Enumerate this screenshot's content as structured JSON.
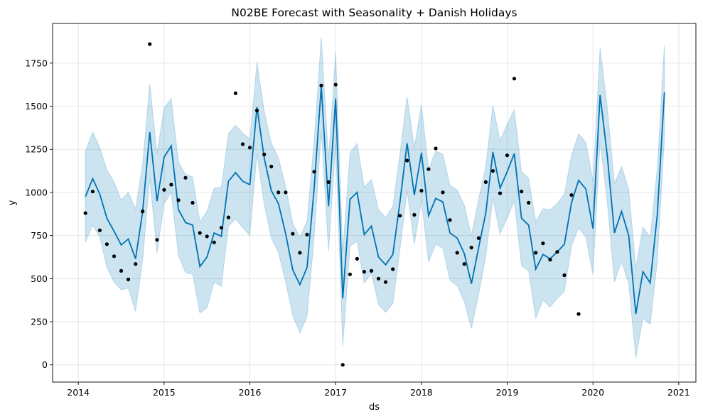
{
  "chart_data": {
    "type": "line",
    "title": "N02BE Forecast with Seasonality + Danish Holidays",
    "xlabel": "ds",
    "ylabel": "y",
    "xlim": [
      2013.7,
      2021.2
    ],
    "ylim": [
      -100,
      1980
    ],
    "grid": true,
    "x_ticks": [
      2014,
      2015,
      2016,
      2017,
      2018,
      2019,
      2020,
      2021
    ],
    "y_ticks": [
      0,
      250,
      500,
      750,
      1000,
      1250,
      1500,
      1750
    ],
    "colors": {
      "forecast": "#0072b2",
      "band": "#0072b2",
      "points": "#000000",
      "grid": "#e6e6e6"
    },
    "observed": {
      "x": [
        2014.083,
        2014.167,
        2014.25,
        2014.333,
        2014.417,
        2014.5,
        2014.583,
        2014.667,
        2014.75,
        2014.833,
        2014.917,
        2015.0,
        2015.083,
        2015.167,
        2015.25,
        2015.333,
        2015.417,
        2015.5,
        2015.583,
        2015.667,
        2015.75,
        2015.833,
        2015.917,
        2016.0,
        2016.083,
        2016.167,
        2016.25,
        2016.333,
        2016.417,
        2016.5,
        2016.583,
        2016.667,
        2016.75,
        2016.833,
        2016.917,
        2017.0,
        2017.083,
        2017.167,
        2017.25,
        2017.333,
        2017.417,
        2017.5,
        2017.583,
        2017.667,
        2017.75,
        2017.833,
        2017.917,
        2018.0,
        2018.083,
        2018.167,
        2018.25,
        2018.333,
        2018.417,
        2018.5,
        2018.583,
        2018.667,
        2018.75,
        2018.833,
        2018.917,
        2019.0,
        2019.083,
        2019.167,
        2019.25,
        2019.333,
        2019.417,
        2019.5,
        2019.583,
        2019.667,
        2019.75,
        2019.833
      ],
      "y": [
        880,
        1005,
        780,
        700,
        630,
        545,
        495,
        585,
        890,
        1860,
        725,
        1015,
        1045,
        955,
        1085,
        940,
        765,
        745,
        710,
        795,
        855,
        1575,
        1280,
        1260,
        1475,
        1220,
        1150,
        1000,
        1000,
        760,
        650,
        755,
        1120,
        1620,
        1060,
        1625,
        0,
        525,
        615,
        540,
        545,
        500,
        480,
        555,
        865,
        1185,
        870,
        1010,
        1135,
        1255,
        1000,
        840,
        650,
        585,
        680,
        735,
        1060,
        1125,
        995,
        1215,
        1660,
        1005,
        940,
        650,
        705,
        610,
        655,
        520,
        985,
        295
      ]
    },
    "forecast": {
      "x": [
        2014.083,
        2014.167,
        2014.25,
        2014.333,
        2014.417,
        2014.5,
        2014.583,
        2014.667,
        2014.75,
        2014.833,
        2014.917,
        2015.0,
        2015.083,
        2015.167,
        2015.25,
        2015.333,
        2015.417,
        2015.5,
        2015.583,
        2015.667,
        2015.75,
        2015.833,
        2015.917,
        2016.0,
        2016.083,
        2016.167,
        2016.25,
        2016.333,
        2016.417,
        2016.5,
        2016.583,
        2016.667,
        2016.75,
        2016.833,
        2016.917,
        2017.0,
        2017.083,
        2017.167,
        2017.25,
        2017.333,
        2017.417,
        2017.5,
        2017.583,
        2017.667,
        2017.75,
        2017.833,
        2017.917,
        2018.0,
        2018.083,
        2018.167,
        2018.25,
        2018.333,
        2018.417,
        2018.5,
        2018.583,
        2018.667,
        2018.75,
        2018.833,
        2018.917,
        2019.0,
        2019.083,
        2019.167,
        2019.25,
        2019.333,
        2019.417,
        2019.5,
        2019.583,
        2019.667,
        2019.75,
        2019.833,
        2019.917,
        2020.0,
        2020.083,
        2020.167,
        2020.25,
        2020.333,
        2020.417,
        2020.5,
        2020.583,
        2020.667,
        2020.75,
        2020.833
      ],
      "yhat": [
        975,
        1080,
        990,
        850,
        775,
        695,
        730,
        615,
        890,
        1350,
        950,
        1205,
        1270,
        900,
        825,
        810,
        570,
        625,
        765,
        745,
        1065,
        1115,
        1065,
        1045,
        1495,
        1200,
        1010,
        935,
        760,
        550,
        465,
        565,
        1025,
        1615,
        920,
        1545,
        385,
        960,
        1000,
        755,
        805,
        625,
        580,
        640,
        945,
        1285,
        985,
        1230,
        865,
        965,
        945,
        765,
        735,
        645,
        470,
        680,
        880,
        1235,
        1025,
        1120,
        1225,
        850,
        810,
        555,
        640,
        615,
        655,
        700,
        940,
        1070,
        1020,
        790,
        1565,
        1210,
        765,
        890,
        750,
        295,
        540,
        475,
        870,
        1580
      ],
      "lower": [
        710,
        810,
        740,
        565,
        480,
        435,
        445,
        310,
        610,
        1080,
        650,
        935,
        1000,
        635,
        535,
        525,
        300,
        330,
        480,
        455,
        805,
        845,
        795,
        750,
        1225,
        930,
        735,
        650,
        480,
        285,
        185,
        280,
        745,
        1355,
        660,
        1280,
        110,
        690,
        715,
        475,
        530,
        350,
        305,
        355,
        670,
        1010,
        700,
        955,
        595,
        700,
        675,
        490,
        460,
        365,
        210,
        410,
        630,
        965,
        760,
        850,
        950,
        575,
        545,
        270,
        375,
        335,
        385,
        425,
        690,
        795,
        740,
        525,
        1295,
        940,
        480,
        600,
        470,
        40,
        270,
        235,
        600,
        1310
      ],
      "upper": [
        1240,
        1350,
        1260,
        1130,
        1060,
        955,
        1000,
        905,
        1165,
        1630,
        1225,
        1490,
        1545,
        1175,
        1105,
        1090,
        830,
        890,
        1025,
        1030,
        1340,
        1390,
        1345,
        1310,
        1755,
        1470,
        1285,
        1200,
        1035,
        820,
        740,
        835,
        1300,
        1900,
        1190,
        1815,
        655,
        1230,
        1285,
        1030,
        1075,
        900,
        855,
        920,
        1225,
        1555,
        1260,
        1510,
        1135,
        1240,
        1220,
        1040,
        1015,
        925,
        750,
        960,
        1150,
        1505,
        1300,
        1395,
        1480,
        1120,
        1080,
        830,
        905,
        900,
        935,
        990,
        1215,
        1340,
        1290,
        1065,
        1840,
        1490,
        1050,
        1150,
        1020,
        560,
        800,
        740,
        1140,
        1855
      ]
    }
  }
}
